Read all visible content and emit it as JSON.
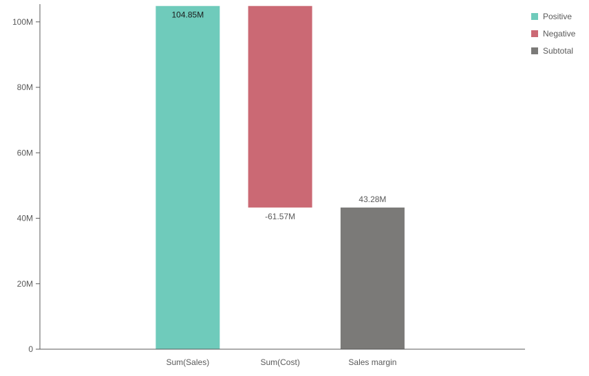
{
  "chart_data": {
    "type": "bar",
    "subtype": "waterfall",
    "title": "",
    "xlabel": "",
    "ylabel": "",
    "categories": [
      "Sum(Sales)",
      "Sum(Cost)",
      "Sales margin"
    ],
    "bars": [
      {
        "category": "Sum(Sales)",
        "kind": "Positive",
        "start": 0,
        "end": 104.85,
        "label": "104.85M"
      },
      {
        "category": "Sum(Cost)",
        "kind": "Negative",
        "start": 104.85,
        "end": 43.28,
        "label": "-61.57M"
      },
      {
        "category": "Sales margin",
        "kind": "Subtotal",
        "start": 0,
        "end": 43.28,
        "label": "43.28M"
      }
    ],
    "ylim": [
      0,
      105
    ],
    "yticks": [
      {
        "value": 0,
        "label": "0"
      },
      {
        "value": 20,
        "label": "20M"
      },
      {
        "value": 40,
        "label": "40M"
      },
      {
        "value": 60,
        "label": "60M"
      },
      {
        "value": 80,
        "label": "80M"
      },
      {
        "value": 100,
        "label": "100M"
      }
    ],
    "grid": false,
    "legend_position": "top-right",
    "legend": [
      {
        "name": "Positive",
        "color": "#6fcbbb"
      },
      {
        "name": "Negative",
        "color": "#cb6974"
      },
      {
        "name": "Subtotal",
        "color": "#7b7a78"
      }
    ],
    "colors": {
      "Positive": "#6fcbbb",
      "Negative": "#cb6974",
      "Subtotal": "#7b7a78",
      "axis": "#595959"
    }
  }
}
